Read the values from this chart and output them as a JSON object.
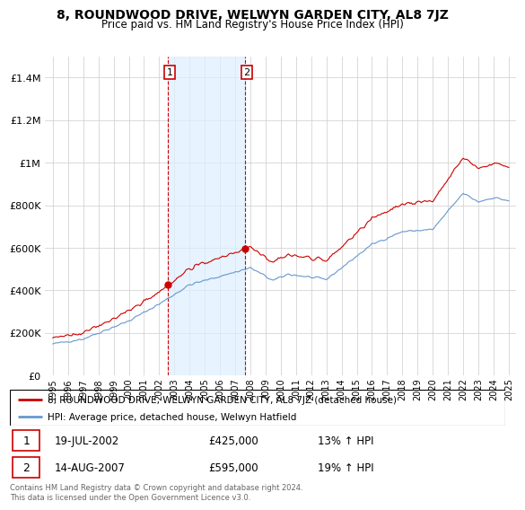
{
  "title": "8, ROUNDWOOD DRIVE, WELWYN GARDEN CITY, AL8 7JZ",
  "subtitle": "Price paid vs. HM Land Registry's House Price Index (HPI)",
  "legend_line1": "8, ROUNDWOOD DRIVE, WELWYN GARDEN CITY, AL8 7JZ (detached house)",
  "legend_line2": "HPI: Average price, detached house, Welwyn Hatfield",
  "transaction1_date": "19-JUL-2002",
  "transaction1_price": "£425,000",
  "transaction1_hpi": "13% ↑ HPI",
  "transaction1_year": 2002.54,
  "transaction1_value": 425000,
  "transaction2_date": "14-AUG-2007",
  "transaction2_price": "£595,000",
  "transaction2_hpi": "19% ↑ HPI",
  "transaction2_year": 2007.62,
  "transaction2_value": 595000,
  "line_red": "#cc0000",
  "line_blue": "#6699cc",
  "shading_color": "#ddeeff",
  "vline_color": "#cc0000",
  "marker_box_color": "#cc0000",
  "footer_text": "Contains HM Land Registry data © Crown copyright and database right 2024.\nThis data is licensed under the Open Government Licence v3.0.",
  "ylim": [
    0,
    1500000
  ],
  "xlim_start": 1994.5,
  "xlim_end": 2025.5,
  "yticks": [
    0,
    200000,
    400000,
    600000,
    800000,
    1000000,
    1200000,
    1400000
  ],
  "xticks": [
    1995,
    1996,
    1997,
    1998,
    1999,
    2000,
    2001,
    2002,
    2003,
    2004,
    2005,
    2006,
    2007,
    2008,
    2009,
    2010,
    2011,
    2012,
    2013,
    2014,
    2015,
    2016,
    2017,
    2018,
    2019,
    2020,
    2021,
    2022,
    2023,
    2024,
    2025
  ]
}
